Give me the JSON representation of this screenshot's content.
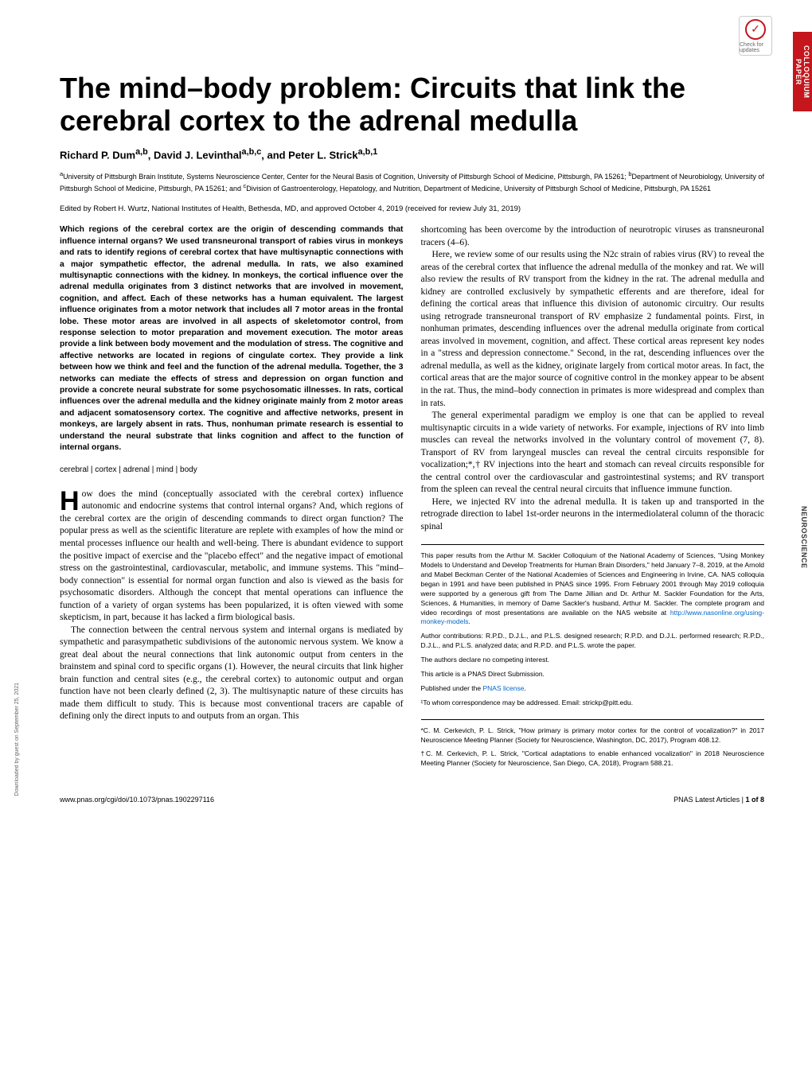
{
  "badge": {
    "check": "✓",
    "label": "Check for updates"
  },
  "side_tabs": {
    "colloquium": "COLLOQUIUM PAPER",
    "neuroscience": "NEUROSCIENCE",
    "download": "Downloaded by guest on September 25, 2021"
  },
  "title": "The mind–body problem: Circuits that link the cerebral cortex to the adrenal medulla",
  "authors_html": "Richard P. Dum<sup>a,b</sup>, David J. Levinthal<sup>a,b,c</sup>, and Peter L. Strick<sup>a,b,1</sup>",
  "affiliations_html": "<sup>a</sup>University of Pittsburgh Brain Institute, Systems Neuroscience Center, Center for the Neural Basis of Cognition, University of Pittsburgh School of Medicine, Pittsburgh, PA 15261; <sup>b</sup>Department of Neurobiology, University of Pittsburgh School of Medicine, Pittsburgh, PA 15261; and <sup>c</sup>Division of Gastroenterology, Hepatology, and Nutrition, Department of Medicine, University of Pittsburgh School of Medicine, Pittsburgh, PA 15261",
  "edited": "Edited by Robert H. Wurtz, National Institutes of Health, Bethesda, MD, and approved October 4, 2019 (received for review July 31, 2019)",
  "abstract": "Which regions of the cerebral cortex are the origin of descending commands that influence internal organs? We used transneuronal transport of rabies virus in monkeys and rats to identify regions of cerebral cortex that have multisynaptic connections with a major sympathetic effector, the adrenal medulla. In rats, we also examined multisynaptic connections with the kidney. In monkeys, the cortical influence over the adrenal medulla originates from 3 distinct networks that are involved in movement, cognition, and affect. Each of these networks has a human equivalent. The largest influence originates from a motor network that includes all 7 motor areas in the frontal lobe. These motor areas are involved in all aspects of skeletomotor control, from response selection to motor preparation and movement execution. The motor areas provide a link between body movement and the modulation of stress. The cognitive and affective networks are located in regions of cingulate cortex. They provide a link between how we think and feel and the function of the adrenal medulla. Together, the 3 networks can mediate the effects of stress and depression on organ function and provide a concrete neural substrate for some psychosomatic illnesses. In rats, cortical influences over the adrenal medulla and the kidney originate mainly from 2 motor areas and adjacent somatosensory cortex. The cognitive and affective networks, present in monkeys, are largely absent in rats. Thus, nonhuman primate research is essential to understand the neural substrate that links cognition and affect to the function of internal organs.",
  "keywords": "cerebral | cortex | adrenal | mind | body",
  "body_left_dropcap": "H",
  "body_left_p1": "ow does the mind (conceptually associated with the cerebral cortex) influence autonomic and endocrine systems that control internal organs? And, which regions of the cerebral cortex are the origin of descending commands to direct organ function? The popular press as well as the scientific literature are replete with examples of how the mind or mental processes influence our health and well-being. There is abundant evidence to support the positive impact of exercise and the \"placebo effect\" and the negative impact of emotional stress on the gastrointestinal, cardiovascular, metabolic, and immune systems. This \"mind–body connection\" is essential for normal organ function and also is viewed as the basis for psychosomatic disorders. Although the concept that mental operations can influence the function of a variety of organ systems has been popularized, it is often viewed with some skepticism, in part, because it has lacked a firm biological basis.",
  "body_left_p2": "The connection between the central nervous system and internal organs is mediated by sympathetic and parasympathetic subdivisions of the autonomic nervous system. We know a great deal about the neural connections that link autonomic output from centers in the brainstem and spinal cord to specific organs (1). However, the neural circuits that link higher brain function and central sites (e.g., the cerebral cortex) to autonomic output and organ function have not been clearly defined (2, 3). The multisynaptic nature of these circuits has made them difficult to study. This is because most conventional tracers are capable of defining only the direct inputs to and outputs from an organ. This",
  "body_right_p1": "shortcoming has been overcome by the introduction of neurotropic viruses as transneuronal tracers (4–6).",
  "body_right_p2": "Here, we review some of our results using the N2c strain of rabies virus (RV) to reveal the areas of the cerebral cortex that influence the adrenal medulla of the monkey and rat. We will also review the results of RV transport from the kidney in the rat. The adrenal medulla and kidney are controlled exclusively by sympathetic efferents and are therefore, ideal for defining the cortical areas that influence this division of autonomic circuitry. Our results using retrograde transneuronal transport of RV emphasize 2 fundamental points. First, in nonhuman primates, descending influences over the adrenal medulla originate from cortical areas involved in movement, cognition, and affect. These cortical areas represent key nodes in a \"stress and depression connectome.\" Second, in the rat, descending influences over the adrenal medulla, as well as the kidney, originate largely from cortical motor areas. In fact, the cortical areas that are the major source of cognitive control in the monkey appear to be absent in the rat. Thus, the mind–body connection in primates is more widespread and complex than in rats.",
  "body_right_p3": "The general experimental paradigm we employ is one that can be applied to reveal multisynaptic circuits in a wide variety of networks. For example, injections of RV into limb muscles can reveal the networks involved in the voluntary control of movement (7, 8). Transport of RV from laryngeal muscles can reveal the central circuits responsible for vocalization;*,† RV injections into the heart and stomach can reveal circuits responsible for the central control over the cardiovascular and gastrointestinal systems; and RV transport from the spleen can reveal the central neural circuits that influence immune function.",
  "body_right_p4": "Here, we injected RV into the adrenal medulla. It is taken up and transported in the retrograde direction to label 1st-order neurons in the intermediolateral column of the thoracic spinal",
  "footnotes": {
    "origin": "This paper results from the Arthur M. Sackler Colloquium of the National Academy of Sciences, \"Using Monkey Models to Understand and Develop Treatments for Human Brain Disorders,\" held January 7–8, 2019, at the Arnold and Mabel Beckman Center of the National Academies of Sciences and Engineering in Irvine, CA. NAS colloquia began in 1991 and have been published in PNAS since 1995. From February 2001 through May 2019 colloquia were supported by a generous gift from The Dame Jillian and Dr. Arthur M. Sackler Foundation for the Arts, Sciences, & Humanities, in memory of Dame Sackler's husband, Arthur M. Sackler. The complete program and video recordings of most presentations are available on the NAS website at ",
    "origin_link": "http://www.nasonline.org/using-monkey-models",
    "contributions": "Author contributions: R.P.D., D.J.L., and P.L.S. designed research; R.P.D. and D.J.L. performed research; R.P.D., D.J.L., and P.L.S. analyzed data; and R.P.D. and P.L.S. wrote the paper.",
    "competing": "The authors declare no competing interest.",
    "submission": "This article is a PNAS Direct Submission.",
    "license_pre": "Published under the ",
    "license_link": "PNAS license",
    "correspondence": "¹To whom correspondence may be addressed. Email: strickp@pitt.edu.",
    "star": "*C. M. Cerkevich, P. L. Strick, \"How primary is primary motor cortex for the control of vocalization?\" in 2017 Neuroscience Meeting Planner (Society for Neuroscience, Washington, DC, 2017), Program 408.12.",
    "dagger": "†C. M. Cerkevich, P. L. Strick, \"Cortical adaptations to enable enhanced vocalization\" in 2018 Neuroscience Meeting Planner (Society for Neuroscience, San Diego, CA, 2018), Program 588.21."
  },
  "footer": {
    "doi": "www.pnas.org/cgi/doi/10.1073/pnas.1902297116",
    "page_label": "PNAS Latest Articles",
    "page_sep": " | ",
    "page_num": "1 of 8"
  },
  "colors": {
    "accent_red": "#c4161c",
    "link_blue": "#0066cc",
    "text": "#000000",
    "gray": "#666666"
  }
}
